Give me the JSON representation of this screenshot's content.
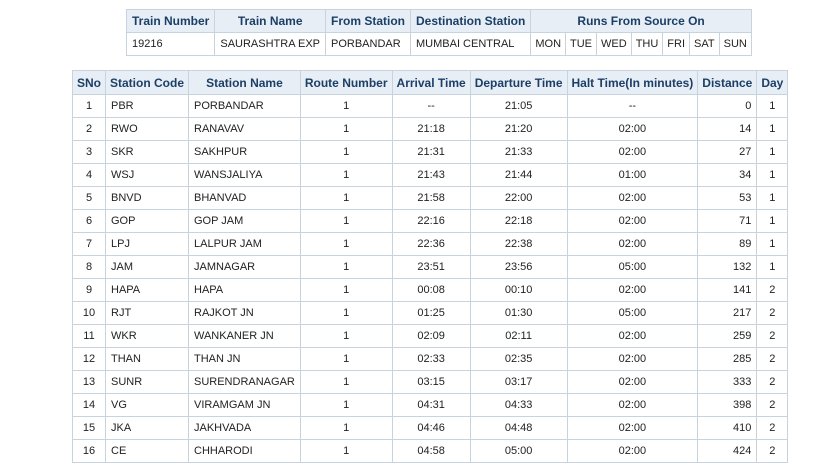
{
  "train_info": {
    "headers": [
      "Train Number",
      "Train Name",
      "From Station",
      "Destination Station",
      "Runs From Source On"
    ],
    "train_number": "19216",
    "train_name": "SAURASHTRA EXP",
    "from_station": "PORBANDAR",
    "destination_station": "MUMBAI CENTRAL",
    "run_days": [
      "MON",
      "TUE",
      "WED",
      "THU",
      "FRI",
      "SAT",
      "SUN"
    ]
  },
  "route": {
    "headers": [
      "SNo",
      "Station Code",
      "Station Name",
      "Route Number",
      "Arrival Time",
      "Departure Time",
      "Halt Time(In minutes)",
      "Distance",
      "Day"
    ],
    "rows": [
      [
        "1",
        "PBR",
        "PORBANDAR",
        "1",
        "--",
        "21:05",
        "--",
        "0",
        "1"
      ],
      [
        "2",
        "RWO",
        "RANAVAV",
        "1",
        "21:18",
        "21:20",
        "02:00",
        "14",
        "1"
      ],
      [
        "3",
        "SKR",
        "SAKHPUR",
        "1",
        "21:31",
        "21:33",
        "02:00",
        "27",
        "1"
      ],
      [
        "4",
        "WSJ",
        "WANSJALIYA",
        "1",
        "21:43",
        "21:44",
        "01:00",
        "34",
        "1"
      ],
      [
        "5",
        "BNVD",
        "BHANVAD",
        "1",
        "21:58",
        "22:00",
        "02:00",
        "53",
        "1"
      ],
      [
        "6",
        "GOP",
        "GOP JAM",
        "1",
        "22:16",
        "22:18",
        "02:00",
        "71",
        "1"
      ],
      [
        "7",
        "LPJ",
        "LALPUR JAM",
        "1",
        "22:36",
        "22:38",
        "02:00",
        "89",
        "1"
      ],
      [
        "8",
        "JAM",
        "JAMNAGAR",
        "1",
        "23:51",
        "23:56",
        "05:00",
        "132",
        "1"
      ],
      [
        "9",
        "HAPA",
        "HAPA",
        "1",
        "00:08",
        "00:10",
        "02:00",
        "141",
        "2"
      ],
      [
        "10",
        "RJT",
        "RAJKOT JN",
        "1",
        "01:25",
        "01:30",
        "05:00",
        "217",
        "2"
      ],
      [
        "11",
        "WKR",
        "WANKANER JN",
        "1",
        "02:09",
        "02:11",
        "02:00",
        "259",
        "2"
      ],
      [
        "12",
        "THAN",
        "THAN JN",
        "1",
        "02:33",
        "02:35",
        "02:00",
        "285",
        "2"
      ],
      [
        "13",
        "SUNR",
        "SURENDRANAGAR",
        "1",
        "03:15",
        "03:17",
        "02:00",
        "333",
        "2"
      ],
      [
        "14",
        "VG",
        "VIRAMGAM JN",
        "1",
        "04:31",
        "04:33",
        "02:00",
        "398",
        "2"
      ],
      [
        "15",
        "JKA",
        "JAKHVADA",
        "1",
        "04:46",
        "04:48",
        "02:00",
        "410",
        "2"
      ],
      [
        "16",
        "CE",
        "CHHARODI",
        "1",
        "04:58",
        "05:00",
        "02:00",
        "424",
        "2"
      ]
    ]
  }
}
